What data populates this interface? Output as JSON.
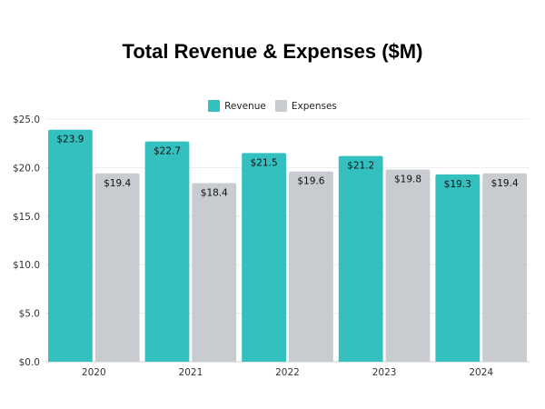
{
  "chart_data": {
    "type": "bar",
    "title": "Total Revenue & Expenses ($M)",
    "xlabel": "",
    "ylabel": "",
    "categories": [
      "2020",
      "2021",
      "2022",
      "2023",
      "2024"
    ],
    "series": [
      {
        "name": "Revenue",
        "color": "#35c0c0",
        "values": [
          23.9,
          22.7,
          21.5,
          21.2,
          19.3
        ],
        "labels": [
          "$23.9",
          "$22.7",
          "$21.5",
          "$21.2",
          "$19.3"
        ]
      },
      {
        "name": "Expenses",
        "color": "#c8cbcf",
        "values": [
          19.4,
          18.4,
          19.6,
          19.8,
          19.4
        ],
        "labels": [
          "$19.4",
          "$18.4",
          "$19.6",
          "$19.8",
          "$19.4"
        ]
      }
    ],
    "ylim": [
      0,
      25
    ],
    "yticks": [
      0,
      5,
      10,
      15,
      20,
      25
    ],
    "ytick_labels": [
      "$0.0",
      "$5.0",
      "$10.0",
      "$15.0",
      "$20.0",
      "$25.0"
    ],
    "grid": true,
    "legend_position": "top-center"
  }
}
